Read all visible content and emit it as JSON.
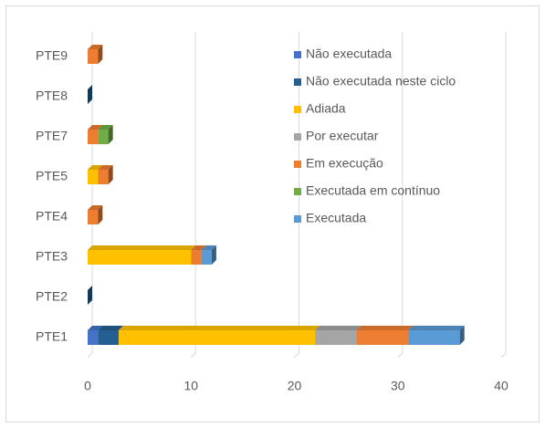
{
  "chart_data": {
    "type": "bar",
    "orientation": "horizontal",
    "stacked": true,
    "grid": true,
    "categories": [
      "PTE1",
      "PTE2",
      "PTE3",
      "PTE4",
      "PTE5",
      "PTE7",
      "PTE8",
      "PTE9"
    ],
    "series": [
      {
        "name": "Não executada",
        "color": "#4472c4",
        "values": [
          1,
          0,
          0,
          0,
          0,
          0,
          0,
          0
        ]
      },
      {
        "name": "Não executada neste ciclo",
        "color": "#255e91",
        "values": [
          2,
          0,
          0,
          0,
          0,
          0,
          0,
          0
        ]
      },
      {
        "name": "Adiada",
        "color": "#ffc000",
        "values": [
          19,
          0,
          10,
          0,
          1,
          0,
          0,
          0
        ]
      },
      {
        "name": "Por executar",
        "color": "#a5a5a5",
        "values": [
          4,
          0,
          0,
          0,
          0,
          0,
          0,
          0
        ]
      },
      {
        "name": "Em execução",
        "color": "#ed7d31",
        "values": [
          5,
          0,
          1,
          1,
          1,
          1,
          0,
          1
        ]
      },
      {
        "name": "Executada em contínuo",
        "color": "#70ad47",
        "values": [
          0,
          0,
          0,
          0,
          0,
          1,
          0,
          0
        ]
      },
      {
        "name": "Executada",
        "color": "#5b9bd5",
        "values": [
          5,
          0,
          1,
          0,
          0,
          0,
          0,
          0
        ]
      }
    ],
    "xlim": [
      0,
      40
    ],
    "xticks": [
      0,
      10,
      20,
      30,
      40
    ]
  }
}
